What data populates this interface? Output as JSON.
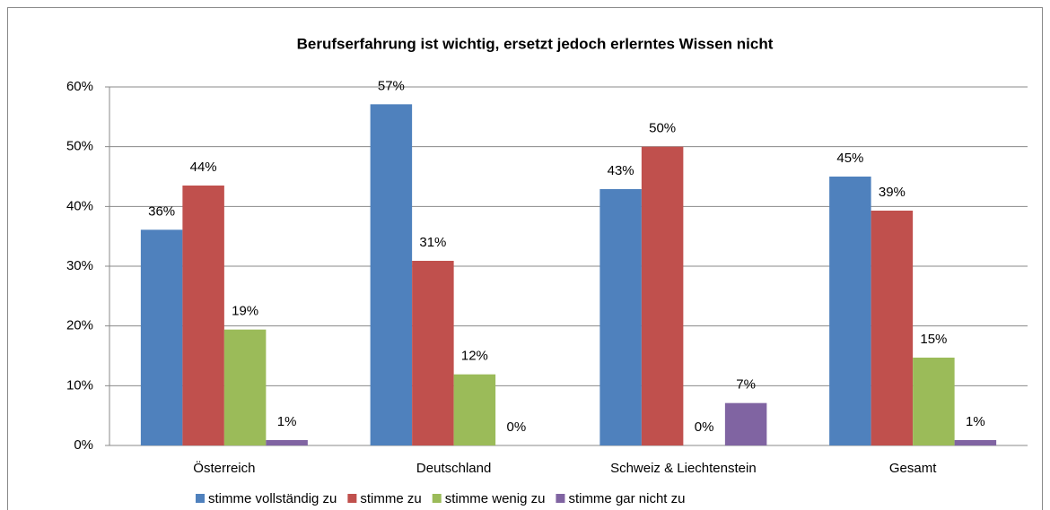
{
  "chart_data": {
    "type": "bar",
    "title": "Berufserfahrung ist wichtig, ersetzt jedoch erlerntes Wissen nicht",
    "categories": [
      "Österreich",
      "Deutschland",
      "Schweiz & Liechtenstein",
      "Gesamt"
    ],
    "series": [
      {
        "name": "stimme vollständig zu",
        "color": "#4f81bd",
        "values": [
          36.1,
          57.1,
          42.9,
          45.0
        ],
        "value_labels": [
          "36%",
          "57%",
          "43%",
          "45%"
        ]
      },
      {
        "name": "stimme zu",
        "color": "#c0504d",
        "values": [
          43.5,
          30.9,
          50.0,
          39.3
        ],
        "value_labels": [
          "44%",
          "31%",
          "50%",
          "39%"
        ]
      },
      {
        "name": "stimme wenig zu",
        "color": "#9bbb59",
        "values": [
          19.4,
          11.9,
          0,
          14.7
        ],
        "value_labels": [
          "19%",
          "12%",
          "0%",
          "15%"
        ]
      },
      {
        "name": "stimme gar nicht zu",
        "color": "#8064a2",
        "values": [
          0.9,
          0,
          7.1,
          0.9
        ],
        "value_labels": [
          "1%",
          "0%",
          "7%",
          "1%"
        ]
      }
    ],
    "ylim": [
      0,
      60
    ],
    "yticks": [
      {
        "value": 0,
        "label": "0%"
      },
      {
        "value": 10,
        "label": "10%"
      },
      {
        "value": 20,
        "label": "20%"
      },
      {
        "value": 30,
        "label": "30%"
      },
      {
        "value": 40,
        "label": "40%"
      },
      {
        "value": 50,
        "label": "50%"
      },
      {
        "value": 60,
        "label": "60%"
      }
    ],
    "grid": true,
    "legend": "bottom"
  }
}
